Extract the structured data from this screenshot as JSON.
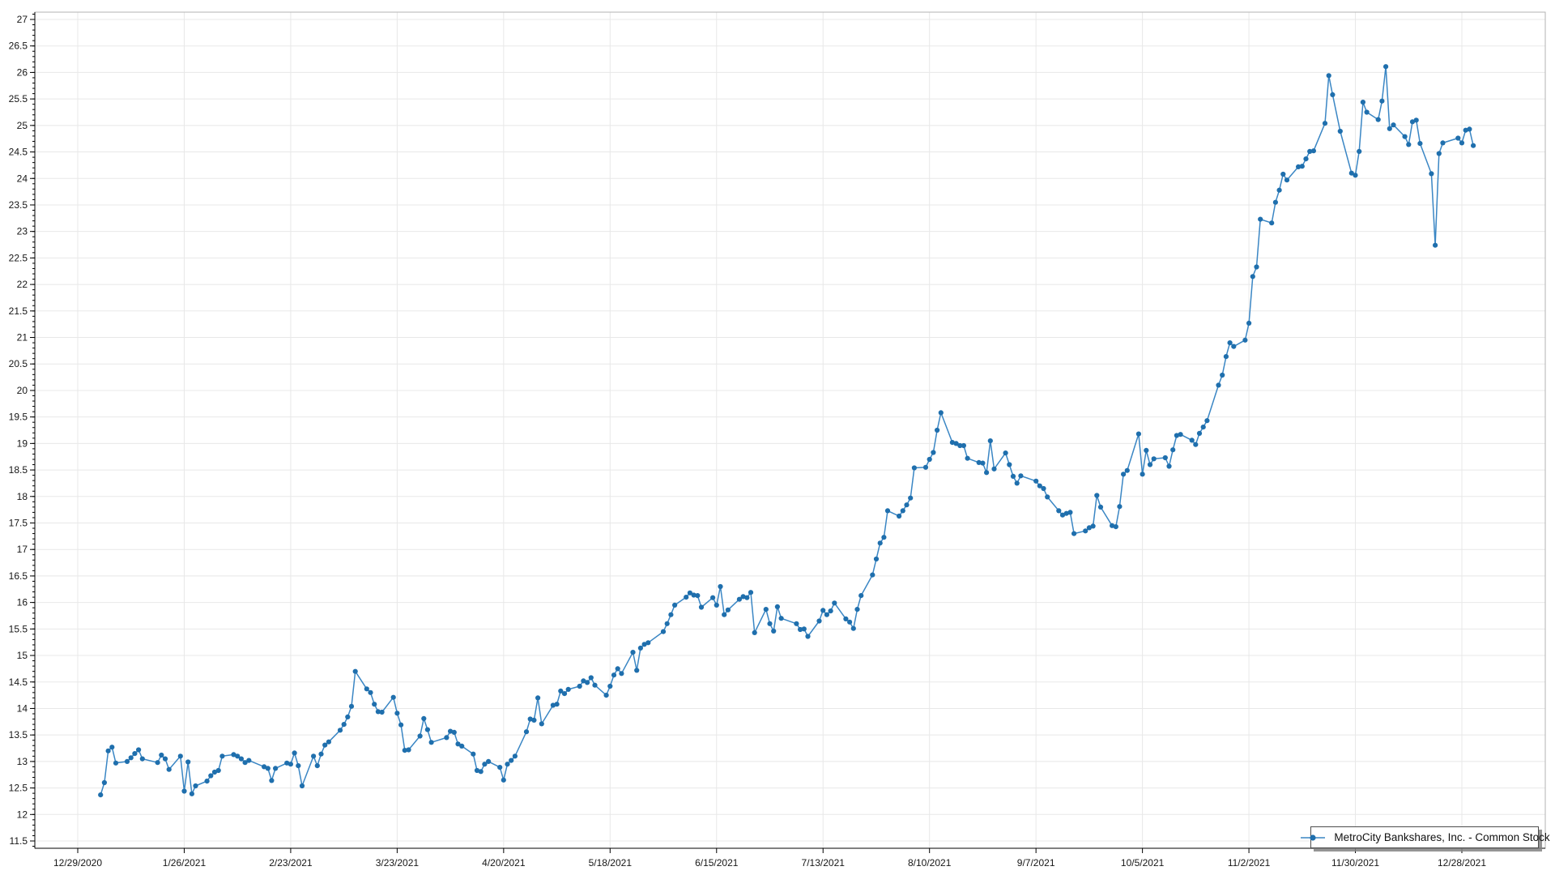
{
  "legend": {
    "label": "MetroCity Bankshares, Inc. - Common Stock"
  },
  "chart_data": {
    "type": "line",
    "title": "",
    "xlabel": "",
    "ylabel": "",
    "grid": true,
    "legend_position": "bottom-right",
    "marker": "circle",
    "line_color": "#3a86c4",
    "marker_color": "#1f6fad",
    "grid_color": "#e8e8e8",
    "axis_color": "#000000",
    "border_color": "#b3b3b3",
    "ylim": [
      11.35,
      27.15
    ],
    "y_tick_min": 11.5,
    "y_tick_max": 27,
    "y_tick_step": 0.5,
    "y_minor_tick_step": 0.1,
    "x_tick_labels": [
      "12/29/2020",
      "1/26/2021",
      "2/23/2021",
      "3/23/2021",
      "4/20/2021",
      "5/18/2021",
      "6/15/2021",
      "7/13/2021",
      "8/10/2021",
      "9/7/2021",
      "10/5/2021",
      "11/2/2021",
      "11/30/2021",
      "12/28/2021"
    ],
    "x": [
      "1/4/2021",
      "1/5/2021",
      "1/6/2021",
      "1/7/2021",
      "1/8/2021",
      "1/11/2021",
      "1/12/2021",
      "1/13/2021",
      "1/14/2021",
      "1/15/2021",
      "1/19/2021",
      "1/20/2021",
      "1/21/2021",
      "1/22/2021",
      "1/25/2021",
      "1/26/2021",
      "1/27/2021",
      "1/28/2021",
      "1/29/2021",
      "2/1/2021",
      "2/2/2021",
      "2/3/2021",
      "2/4/2021",
      "2/5/2021",
      "2/8/2021",
      "2/9/2021",
      "2/10/2021",
      "2/11/2021",
      "2/12/2021",
      "2/16/2021",
      "2/17/2021",
      "2/18/2021",
      "2/19/2021",
      "2/22/2021",
      "2/23/2021",
      "2/24/2021",
      "2/25/2021",
      "2/26/2021",
      "3/1/2021",
      "3/2/2021",
      "3/3/2021",
      "3/4/2021",
      "3/5/2021",
      "3/8/2021",
      "3/9/2021",
      "3/10/2021",
      "3/11/2021",
      "3/12/2021",
      "3/15/2021",
      "3/16/2021",
      "3/17/2021",
      "3/18/2021",
      "3/19/2021",
      "3/22/2021",
      "3/23/2021",
      "3/24/2021",
      "3/25/2021",
      "3/26/2021",
      "3/29/2021",
      "3/30/2021",
      "3/31/2021",
      "4/1/2021",
      "4/5/2021",
      "4/6/2021",
      "4/7/2021",
      "4/8/2021",
      "4/9/2021",
      "4/12/2021",
      "4/13/2021",
      "4/14/2021",
      "4/15/2021",
      "4/16/2021",
      "4/19/2021",
      "4/20/2021",
      "4/21/2021",
      "4/22/2021",
      "4/23/2021",
      "4/26/2021",
      "4/27/2021",
      "4/28/2021",
      "4/29/2021",
      "4/30/2021",
      "5/3/2021",
      "5/4/2021",
      "5/5/2021",
      "5/6/2021",
      "5/7/2021",
      "5/10/2021",
      "5/11/2021",
      "5/12/2021",
      "5/13/2021",
      "5/14/2021",
      "5/17/2021",
      "5/18/2021",
      "5/19/2021",
      "5/20/2021",
      "5/21/2021",
      "5/24/2021",
      "5/25/2021",
      "5/26/2021",
      "5/27/2021",
      "5/28/2021",
      "6/1/2021",
      "6/2/2021",
      "6/3/2021",
      "6/4/2021",
      "6/7/2021",
      "6/8/2021",
      "6/9/2021",
      "6/10/2021",
      "6/11/2021",
      "6/14/2021",
      "6/15/2021",
      "6/16/2021",
      "6/17/2021",
      "6/18/2021",
      "6/21/2021",
      "6/22/2021",
      "6/23/2021",
      "6/24/2021",
      "6/25/2021",
      "6/28/2021",
      "6/29/2021",
      "6/30/2021",
      "7/1/2021",
      "7/2/2021",
      "7/6/2021",
      "7/7/2021",
      "7/8/2021",
      "7/9/2021",
      "7/12/2021",
      "7/13/2021",
      "7/14/2021",
      "7/15/2021",
      "7/16/2021",
      "7/19/2021",
      "7/20/2021",
      "7/21/2021",
      "7/22/2021",
      "7/23/2021",
      "7/26/2021",
      "7/27/2021",
      "7/28/2021",
      "7/29/2021",
      "7/30/2021",
      "8/2/2021",
      "8/3/2021",
      "8/4/2021",
      "8/5/2021",
      "8/6/2021",
      "8/9/2021",
      "8/10/2021",
      "8/11/2021",
      "8/12/2021",
      "8/13/2021",
      "8/16/2021",
      "8/17/2021",
      "8/18/2021",
      "8/19/2021",
      "8/20/2021",
      "8/23/2021",
      "8/24/2021",
      "8/25/2021",
      "8/26/2021",
      "8/27/2021",
      "8/30/2021",
      "8/31/2021",
      "9/1/2021",
      "9/2/2021",
      "9/3/2021",
      "9/7/2021",
      "9/8/2021",
      "9/9/2021",
      "9/10/2021",
      "9/13/2021",
      "9/14/2021",
      "9/15/2021",
      "9/16/2021",
      "9/17/2021",
      "9/20/2021",
      "9/21/2021",
      "9/22/2021",
      "9/23/2021",
      "9/24/2021",
      "9/27/2021",
      "9/28/2021",
      "9/29/2021",
      "9/30/2021",
      "10/1/2021",
      "10/4/2021",
      "10/5/2021",
      "10/6/2021",
      "10/7/2021",
      "10/8/2021",
      "10/11/2021",
      "10/12/2021",
      "10/13/2021",
      "10/14/2021",
      "10/15/2021",
      "10/18/2021",
      "10/19/2021",
      "10/20/2021",
      "10/21/2021",
      "10/22/2021",
      "10/25/2021",
      "10/26/2021",
      "10/27/2021",
      "10/28/2021",
      "10/29/2021",
      "11/1/2021",
      "11/2/2021",
      "11/3/2021",
      "11/4/2021",
      "11/5/2021",
      "11/8/2021",
      "11/9/2021",
      "11/10/2021",
      "11/11/2021",
      "11/12/2021",
      "11/15/2021",
      "11/16/2021",
      "11/17/2021",
      "11/18/2021",
      "11/19/2021",
      "11/22/2021",
      "11/23/2021",
      "11/24/2021",
      "11/26/2021",
      "11/29/2021",
      "11/30/2021",
      "12/1/2021",
      "12/2/2021",
      "12/3/2021",
      "12/6/2021",
      "12/7/2021",
      "12/8/2021",
      "12/9/2021",
      "12/10/2021",
      "12/13/2021",
      "12/14/2021",
      "12/15/2021",
      "12/16/2021",
      "12/17/2021",
      "12/20/2021",
      "12/21/2021",
      "12/22/2021",
      "12/23/2021",
      "12/27/2021",
      "12/28/2021",
      "12/29/2021",
      "12/30/2021",
      "12/31/2021"
    ],
    "series": [
      {
        "name": "MetroCity Bankshares, Inc. - Common Stock",
        "values": [
          12.37,
          12.6,
          13.2,
          13.27,
          12.97,
          13.0,
          13.07,
          13.15,
          13.22,
          13.05,
          12.98,
          13.12,
          13.05,
          12.85,
          13.1,
          12.44,
          12.99,
          12.39,
          12.54,
          12.63,
          12.73,
          12.8,
          12.83,
          13.1,
          13.13,
          13.1,
          13.05,
          12.98,
          13.02,
          12.9,
          12.87,
          12.64,
          12.87,
          12.97,
          12.95,
          13.16,
          12.92,
          12.54,
          13.1,
          12.92,
          13.14,
          13.31,
          13.37,
          13.59,
          13.7,
          13.84,
          14.04,
          14.7,
          14.37,
          14.3,
          14.08,
          13.94,
          13.93,
          14.21,
          13.91,
          13.69,
          13.21,
          13.22,
          13.48,
          13.81,
          13.6,
          13.36,
          13.45,
          13.57,
          13.55,
          13.33,
          13.29,
          13.14,
          12.83,
          12.81,
          12.95,
          13.0,
          12.89,
          12.65,
          12.95,
          13.02,
          13.1,
          13.56,
          13.8,
          13.78,
          14.2,
          13.71,
          14.06,
          14.08,
          14.33,
          14.28,
          14.36,
          14.42,
          14.52,
          14.49,
          14.58,
          14.44,
          14.25,
          14.42,
          14.63,
          14.75,
          14.66,
          15.06,
          14.72,
          15.14,
          15.21,
          15.24,
          15.45,
          15.6,
          15.77,
          15.95,
          16.1,
          16.18,
          16.14,
          16.13,
          15.91,
          16.09,
          15.95,
          16.3,
          15.77,
          15.86,
          16.06,
          16.11,
          16.09,
          16.19,
          15.43,
          15.87,
          15.6,
          15.46,
          15.92,
          15.7,
          15.6,
          15.49,
          15.5,
          15.36,
          15.65,
          15.85,
          15.77,
          15.84,
          15.99,
          15.69,
          15.63,
          15.51,
          15.87,
          16.13,
          16.52,
          16.82,
          17.12,
          17.23,
          17.73,
          17.63,
          17.73,
          17.84,
          17.97,
          18.54,
          18.55,
          18.7,
          18.83,
          19.25,
          19.58,
          19.02,
          19.0,
          18.96,
          18.96,
          18.72,
          18.64,
          18.63,
          18.45,
          19.05,
          18.52,
          18.82,
          18.6,
          18.38,
          18.25,
          18.39,
          18.29,
          18.2,
          18.15,
          17.99,
          17.73,
          17.65,
          17.68,
          17.7,
          17.3,
          17.35,
          17.41,
          17.44,
          18.02,
          17.8,
          17.45,
          17.43,
          17.81,
          18.42,
          18.49,
          19.18,
          18.42,
          18.87,
          18.6,
          18.71,
          18.73,
          18.57,
          18.88,
          19.15,
          19.17,
          19.06,
          18.98,
          19.19,
          19.31,
          19.43,
          20.1,
          20.29,
          20.64,
          20.9,
          20.83,
          20.95,
          21.27,
          22.15,
          22.33,
          23.23,
          23.16,
          23.55,
          23.78,
          24.08,
          23.97,
          24.22,
          24.23,
          24.37,
          24.51,
          24.52,
          25.04,
          25.94,
          25.58,
          24.89,
          24.1,
          24.06,
          24.51,
          25.44,
          25.25,
          25.11,
          25.46,
          26.11,
          24.94,
          25.01,
          24.79,
          24.64,
          25.07,
          25.1,
          24.66,
          24.09,
          22.74,
          24.47,
          24.67,
          24.76,
          24.67,
          24.91,
          24.93,
          24.62
        ]
      }
    ]
  }
}
